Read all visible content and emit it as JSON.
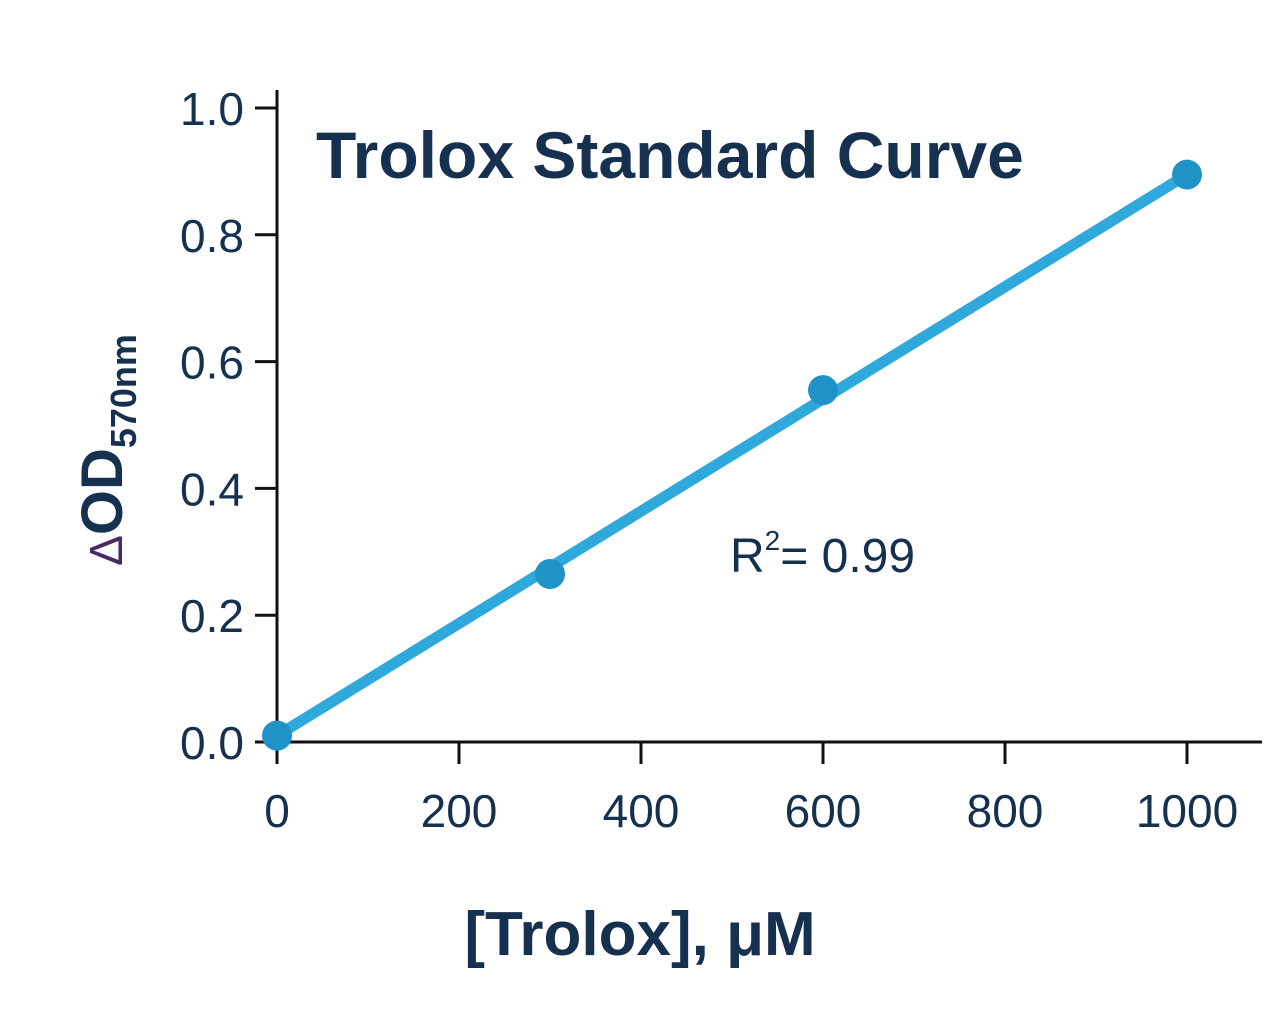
{
  "chart_data": {
    "type": "scatter",
    "title": "Trolox Standard Curve",
    "xlabel": "[Trolox], μM",
    "ylabel": {
      "delta": "Δ",
      "main": "OD",
      "subscript": "570nm"
    },
    "xlim": [
      0,
      1000
    ],
    "ylim": [
      0,
      1.0
    ],
    "x_ticks": [
      0,
      200,
      400,
      600,
      800,
      1000
    ],
    "x_tick_labels": [
      "0",
      "200",
      "400",
      "600",
      "800",
      "1000"
    ],
    "y_ticks": [
      0,
      0.2,
      0.4,
      0.6,
      0.8,
      1.0
    ],
    "y_tick_labels": [
      "0.0",
      "0.2",
      "0.4",
      "0.6",
      "0.8",
      "1.0"
    ],
    "grid": false,
    "series": [
      {
        "x": [
          0,
          300,
          600,
          1000
        ],
        "y": [
          0.01,
          0.265,
          0.555,
          0.895
        ],
        "color": "#1f93c8"
      }
    ],
    "fit_line": {
      "x": [
        0,
        1000
      ],
      "y": [
        0.01,
        0.895
      ],
      "color": "#2fa8dc"
    },
    "annotation": {
      "r": "R",
      "sup": "2",
      "text": "= 0.99"
    }
  }
}
